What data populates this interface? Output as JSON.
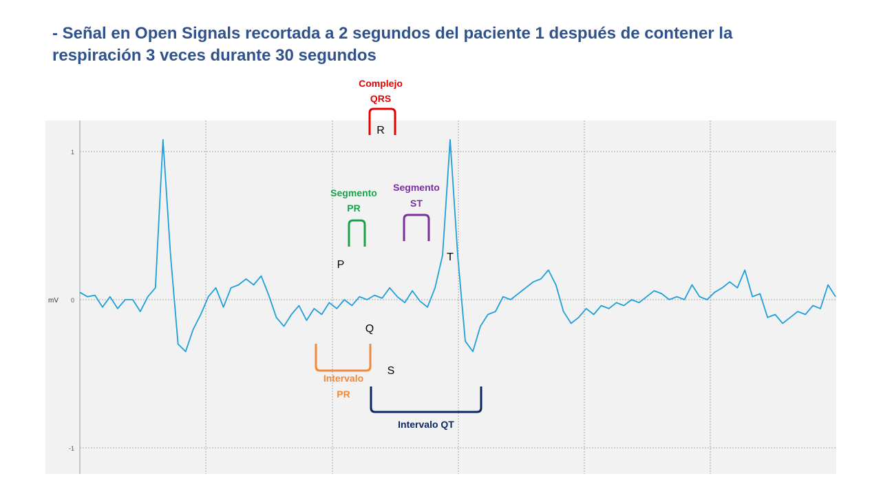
{
  "slide": {
    "title_line1": "- Señal en Open Signals recortada a 2 segundos del paciente 1 después de contener la",
    "title_line2": "respiración 3 veces durante 30 segundos"
  },
  "chart_data": {
    "type": "line",
    "title": "",
    "ylabel": "mV",
    "ylim": [
      -1.2,
      1.2
    ],
    "yticks": [
      1,
      0,
      -1
    ],
    "ytick_labels": [
      "1",
      "0",
      "-1"
    ],
    "grid": true,
    "series_color": "#1e9fd9",
    "series": [
      {
        "name": "",
        "description_note": "",
        "x": [
          0.0,
          0.02,
          0.04,
          0.06,
          0.08,
          0.1,
          0.12,
          0.14,
          0.16,
          0.18,
          0.2,
          0.22,
          0.24,
          0.26,
          0.28,
          0.3,
          0.32,
          0.34,
          0.36,
          0.38,
          0.4,
          0.42,
          0.44,
          0.46,
          0.48,
          0.5,
          0.52,
          0.54,
          0.56,
          0.58,
          0.6,
          0.62,
          0.64,
          0.66,
          0.68,
          0.7,
          0.72,
          0.74,
          0.76,
          0.78,
          0.8,
          0.82,
          0.84,
          0.86,
          0.88,
          0.9,
          0.92,
          0.94,
          0.96,
          0.98,
          1.0,
          1.02,
          1.04,
          1.06,
          1.08,
          1.1,
          1.12,
          1.14,
          1.16,
          1.18,
          1.2,
          1.22,
          1.24,
          1.26,
          1.28,
          1.3,
          1.32,
          1.34,
          1.36,
          1.38,
          1.4,
          1.42,
          1.44,
          1.46,
          1.48,
          1.5,
          1.52,
          1.54,
          1.56,
          1.58,
          1.6,
          1.62,
          1.64,
          1.66,
          1.68,
          1.7,
          1.72,
          1.74,
          1.76,
          1.78,
          1.8,
          1.82,
          1.84,
          1.86,
          1.88,
          1.9,
          1.92,
          1.94,
          1.96,
          1.98,
          2.0
        ],
        "y": [
          0.05,
          0.02,
          0.03,
          -0.05,
          0.02,
          -0.06,
          0.0,
          0.0,
          -0.08,
          0.02,
          0.08,
          1.08,
          0.3,
          -0.3,
          -0.35,
          -0.2,
          -0.1,
          0.02,
          0.08,
          -0.05,
          0.08,
          0.1,
          0.14,
          0.1,
          0.16,
          0.03,
          -0.12,
          -0.18,
          -0.1,
          -0.04,
          -0.14,
          -0.06,
          -0.1,
          -0.02,
          -0.06,
          0.0,
          -0.04,
          0.02,
          0.0,
          0.03,
          0.01,
          0.08,
          0.02,
          -0.02,
          0.06,
          -0.01,
          -0.05,
          0.08,
          0.3,
          1.08,
          0.3,
          -0.28,
          -0.35,
          -0.18,
          -0.1,
          -0.08,
          0.02,
          0.0,
          0.04,
          0.08,
          0.12,
          0.14,
          0.2,
          0.1,
          -0.08,
          -0.16,
          -0.12,
          -0.06,
          -0.1,
          -0.04,
          -0.06,
          -0.02,
          -0.04,
          0.0,
          -0.02,
          0.02,
          0.06,
          0.04,
          0.0,
          0.02,
          0.0,
          0.1,
          0.02,
          0.0,
          0.05,
          0.08,
          0.12,
          0.08,
          0.2,
          0.02,
          0.04,
          -0.12,
          -0.1,
          -0.16,
          -0.12,
          -0.08,
          -0.1,
          -0.04,
          -0.06,
          0.1,
          0.02
        ]
      }
    ],
    "annotations": [
      {
        "label": "Complejo QRS",
        "line1": "Complejo",
        "line2": "QRS",
        "color": "#e60000"
      },
      {
        "label": "Segmento PR",
        "line1": "Segmento",
        "line2": "PR",
        "color": "#1aa24a"
      },
      {
        "label": "Segmento ST",
        "line1": "Segmento",
        "line2": "ST",
        "color": "#7a2f9c"
      },
      {
        "label": "Intervalo PR",
        "line1": "Intervalo",
        "line2": "PR",
        "color": "#ed8a3d"
      },
      {
        "label": "Intervalo QT",
        "line1": "Intervalo QT",
        "line2": "",
        "color": "#0c2461"
      }
    ],
    "wave_labels": [
      "P",
      "Q",
      "R",
      "S",
      "T"
    ]
  }
}
